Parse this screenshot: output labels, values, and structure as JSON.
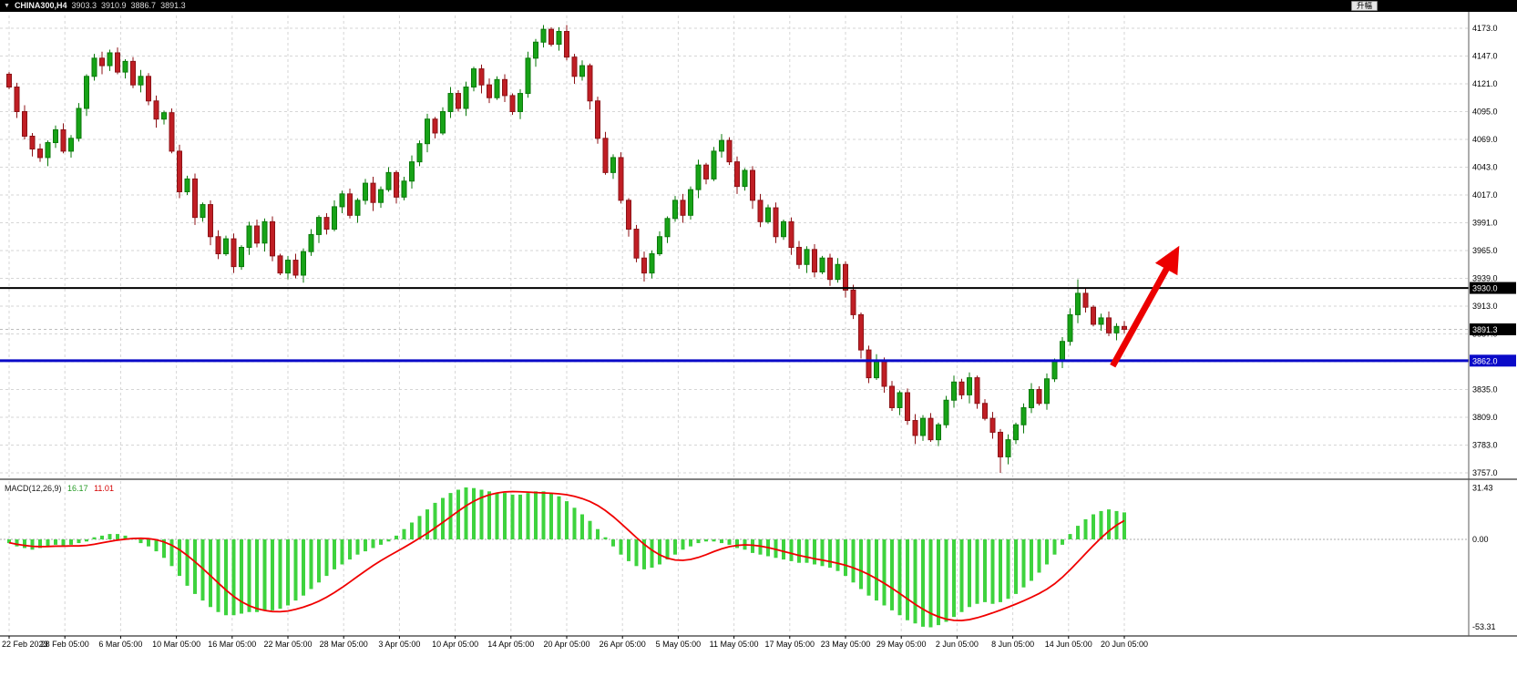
{
  "header": {
    "dropdown_glyph": "▼",
    "symbol": "CHINA300,H4",
    "quote": {
      "open": "3903.3",
      "high": "3910.9",
      "low": "3886.7",
      "close": "3891.3"
    },
    "rise_button_label": "升幅"
  },
  "macd_panel": {
    "label": "MACD(12,26,9)",
    "macd_value": "16.17",
    "signal_value": "11.01"
  },
  "chart_data": {
    "type": "candlestick",
    "symbol": "CHINA300",
    "timeframe": "H4",
    "quote": {
      "open": 3903.3,
      "high": 3910.9,
      "low": 3886.7,
      "close": 3891.3
    },
    "price_ticks": [
      4173.0,
      4147.0,
      4121.0,
      4095.0,
      4069.0,
      4043.0,
      4017.0,
      3991.0,
      3965.0,
      3939.0,
      3913.0,
      3887.0,
      3861.0,
      3835.0,
      3809.0,
      3783.0,
      3757.0
    ],
    "y_axis": {
      "min": 3751,
      "max": 4186,
      "tick_step": 26
    },
    "x_labels": [
      "22 Feb 2023",
      "28 Feb 05:00",
      "6 Mar 05:00",
      "10 Mar 05:00",
      "16 Mar 05:00",
      "22 Mar 05:00",
      "28 Mar 05:00",
      "3 Apr 05:00",
      "10 Apr 05:00",
      "14 Apr 05:00",
      "20 Apr 05:00",
      "26 Apr 05:00",
      "5 May 05:00",
      "11 May 05:00",
      "17 May 05:00",
      "23 May 05:00",
      "29 May 05:00",
      "2 Jun 05:00",
      "8 Jun 05:00",
      "14 Jun 05:00",
      "20 Jun 05:00"
    ],
    "candles": {
      "first_open": 4130,
      "closes": [
        4118,
        4095,
        4072,
        4060,
        4052,
        4066,
        4078,
        4058,
        4070,
        4098,
        4128,
        4145,
        4138,
        4150,
        4132,
        4142,
        4120,
        4128,
        4105,
        4088,
        4094,
        4058,
        4020,
        4032,
        3996,
        4008,
        3978,
        3962,
        3976,
        3950,
        3968,
        3988,
        3972,
        3992,
        3960,
        3944,
        3956,
        3942,
        3964,
        3980,
        3996,
        3985,
        4006,
        4018,
        3998,
        4012,
        4028,
        4010,
        4022,
        4038,
        4015,
        4030,
        4048,
        4065,
        4088,
        4075,
        4095,
        4112,
        4098,
        4118,
        4135,
        4120,
        4108,
        4125,
        4110,
        4095,
        4112,
        4145,
        4160,
        4172,
        4158,
        4170,
        4146,
        4128,
        4138,
        4105,
        4070,
        4038,
        4052,
        4012,
        3985,
        3958,
        3944,
        3962,
        3978,
        3995,
        4012,
        3998,
        4022,
        4045,
        4032,
        4058,
        4068,
        4048,
        4025,
        4040,
        4012,
        3992,
        4005,
        3978,
        3992,
        3968,
        3952,
        3966,
        3945,
        3958,
        3938,
        3952,
        3928,
        3905,
        3872,
        3846,
        3862,
        3838,
        3818,
        3832,
        3806,
        3792,
        3808,
        3788,
        3802,
        3825,
        3842,
        3830,
        3846,
        3822,
        3808,
        3795,
        3772,
        3788,
        3802,
        3818,
        3835,
        3822,
        3845,
        3862,
        3880,
        3905,
        3925,
        3912,
        3896,
        3902,
        3888,
        3894,
        3891.3
      ],
      "wick_high_index": 69,
      "wick_high": 4176,
      "wick_low_index": 128,
      "wick_low": 3757,
      "wick_high2_index": 138,
      "wick_high2": 3938
    },
    "hlines": [
      {
        "price": 3930.0,
        "label": "3930.0",
        "color": "#000000",
        "width": 2
      },
      {
        "price": 3862.0,
        "label": "3862.0",
        "color": "#0a0ac8",
        "width": 3
      }
    ],
    "current_price": {
      "value": 3891.3,
      "label": "3891.3"
    },
    "arrow": {
      "from_index": 142.5,
      "from_price": 3857,
      "to_index": 150.3,
      "to_price": 3959
    },
    "macd": {
      "params": "12,26,9",
      "macd_value": 16.17,
      "signal_value": 11.01,
      "scale_max": 31.43,
      "scale_zero": 0,
      "scale_min": -53.31,
      "signal_period": 9,
      "histogram": [
        -2,
        -4,
        -5,
        -6,
        -5,
        -4,
        -3,
        -4,
        -3,
        -2,
        -1,
        1,
        2,
        3,
        3,
        2,
        0,
        -2,
        -4,
        -7,
        -11,
        -16,
        -22,
        -28,
        -33,
        -37,
        -41,
        -44,
        -46,
        -46,
        -45,
        -44,
        -44,
        -43,
        -43,
        -42,
        -40,
        -37,
        -34,
        -30,
        -26,
        -22,
        -18,
        -15,
        -12,
        -9,
        -7,
        -5,
        -3,
        -1,
        2,
        6,
        10,
        14,
        18,
        22,
        25,
        28,
        30,
        31.4,
        31,
        30,
        29,
        28,
        28,
        27,
        27,
        28,
        29,
        29,
        28,
        26,
        23,
        19,
        15,
        11,
        6,
        1,
        -4,
        -9,
        -13,
        -16,
        -18,
        -17,
        -15,
        -12,
        -9,
        -6,
        -4,
        -2,
        -1,
        -1,
        -2,
        -3,
        -5,
        -6,
        -8,
        -9,
        -10,
        -11,
        -12,
        -13,
        -14,
        -14,
        -15,
        -16,
        -17,
        -19,
        -22,
        -26,
        -30,
        -34,
        -37,
        -40,
        -43,
        -46,
        -49,
        -51,
        -53,
        -53.3,
        -52,
        -50,
        -47,
        -44,
        -41,
        -39,
        -38,
        -39,
        -38,
        -36,
        -33,
        -29,
        -25,
        -20,
        -15,
        -9,
        -3,
        3,
        8,
        12,
        15,
        17,
        18,
        17,
        16.17
      ]
    },
    "colors": {
      "up_fill": "#17a317",
      "up_border": "#0b7a0b",
      "down_fill": "#c01e24",
      "down_border": "#8c1216",
      "grid": "#d6d6d6",
      "hist": "#3ed33e",
      "signal": "#f00000",
      "arrow": "#ec0000",
      "tag_bg": "#000000",
      "tag_text": "#ffffff",
      "current_line": "#bdbdbd",
      "axis_text": "#000000",
      "separator": "#000000",
      "axis_border": "#5a5a5a"
    }
  }
}
